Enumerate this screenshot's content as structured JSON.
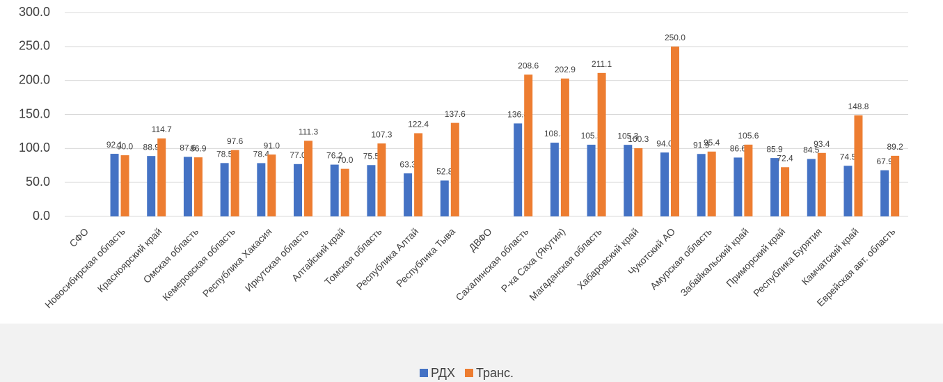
{
  "chart_data": {
    "type": "bar",
    "categories": [
      "СФО",
      "Новосибирская область",
      "Красноярский край",
      "Омская область",
      "Кемеровская область",
      "Республика Хакасия",
      "Иркутская область",
      "Алтайский край",
      "Томская область",
      "Республика Алтай",
      "Республика Тыва",
      "ДВФО",
      "Сахалинская область",
      "Р-ка Саха (Якутия)",
      "Магаданская область",
      "Хабаровский край",
      "Чукотский АО",
      "Амурская область",
      "Забайкальский край",
      "Приморский край",
      "Республика Бурятия",
      "Камчатский край",
      "Еврейская авт. область"
    ],
    "series": [
      {
        "name": "РДХ",
        "color": "#4472c4",
        "values": [
          null,
          92.1,
          88.9,
          87.6,
          78.5,
          78.4,
          77.0,
          76.2,
          75.5,
          63.3,
          52.8,
          null,
          136.8,
          108.5,
          105.5,
          105.3,
          94.0,
          91.9,
          86.6,
          85.9,
          84.5,
          74.5,
          67.9
        ],
        "value_labels": [
          null,
          "92.1",
          "88.9",
          "87.6",
          "78.5",
          "78.4",
          "77.0",
          "76.2",
          "75.5",
          "63.3",
          "52.8",
          null,
          "136.8",
          "108.5",
          "105.5",
          "105.3",
          "94.0",
          "91.9",
          "86.6",
          "85.9",
          "84.5",
          "74.5",
          "67.9"
        ]
      },
      {
        "name": "Транс.",
        "color": "#ed7d31",
        "values": [
          null,
          90.0,
          114.7,
          86.9,
          97.6,
          91.0,
          111.3,
          70.0,
          107.3,
          122.4,
          137.6,
          null,
          208.6,
          202.9,
          211.1,
          100.3,
          250.0,
          95.4,
          105.6,
          72.4,
          93.4,
          148.8,
          89.2
        ],
        "value_labels": [
          null,
          "90.0",
          "114.7",
          "86.9",
          "97.6",
          "91.0",
          "111.3",
          "70.0",
          "107.3",
          "122.4",
          "137.6",
          null,
          "208.6",
          "202.9",
          "211.1",
          "100.3",
          "250.0",
          "95.4",
          "105.6",
          "72.4",
          "93.4",
          "148.8",
          "89.2"
        ]
      }
    ],
    "ylim": [
      0,
      300
    ],
    "yticks": [
      {
        "value": 0,
        "label": "0.0"
      },
      {
        "value": 50,
        "label": "50.0"
      },
      {
        "value": 100,
        "label": "100.0"
      },
      {
        "value": 150,
        "label": "150.0"
      },
      {
        "value": 200,
        "label": "200.0"
      },
      {
        "value": 250,
        "label": "250.0"
      },
      {
        "value": 300,
        "label": "300.0"
      }
    ],
    "grid": true,
    "legend": "bottom"
  }
}
